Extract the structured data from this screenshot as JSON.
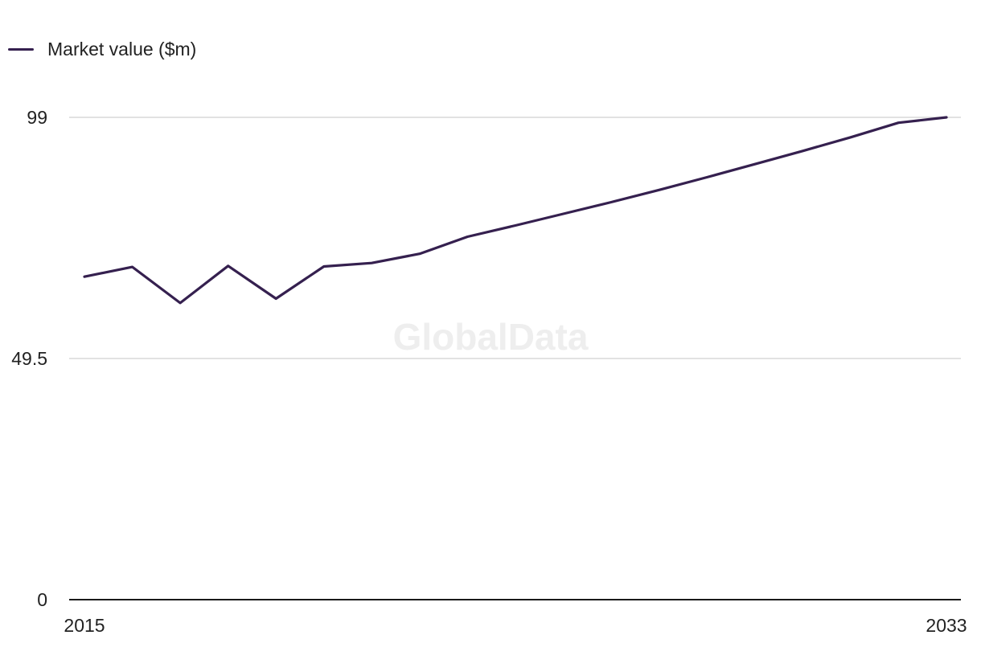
{
  "colors": {
    "series": "#35204f",
    "grid": "#d9d9d9",
    "axis": "#1a1a1a",
    "watermark": "#eeeeee"
  },
  "watermark": "GlobalData",
  "chart_data": {
    "type": "line",
    "title": "",
    "xlabel": "",
    "ylabel": "",
    "x": [
      2015,
      2016,
      2017,
      2018,
      2019,
      2020,
      2021,
      2022,
      2023,
      2024,
      2025,
      2026,
      2027,
      2028,
      2029,
      2030,
      2031,
      2032,
      2033
    ],
    "series": [
      {
        "name": "Market value ($m)",
        "values": [
          66.3,
          68.3,
          60.9,
          68.5,
          61.8,
          68.4,
          69.1,
          71.0,
          74.5,
          76.8,
          79.2,
          81.6,
          84.1,
          86.7,
          89.4,
          92.1,
          94.9,
          97.9,
          99.0
        ]
      }
    ],
    "ylim": [
      0,
      99
    ],
    "y_ticks": [
      "0",
      "49.5",
      "99"
    ],
    "x_ticks": [
      "2015",
      "2033"
    ],
    "grid": true,
    "legend": "top-left"
  }
}
